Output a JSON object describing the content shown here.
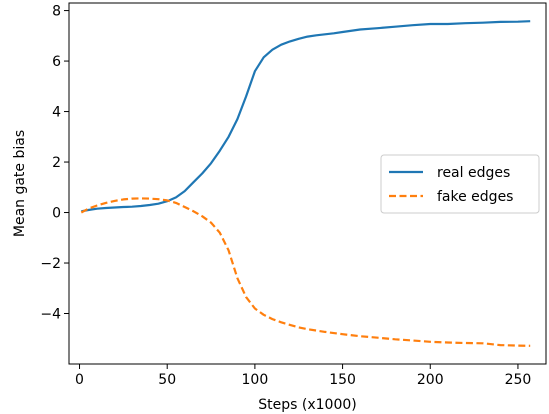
{
  "chart_data": {
    "type": "line",
    "xlabel": "Steps (x1000)",
    "ylabel": "Mean gate bias",
    "xlim": [
      -6,
      266
    ],
    "ylim": [
      -6.0,
      8.3
    ],
    "xticks": [
      0,
      50,
      100,
      150,
      200,
      250
    ],
    "yticks": [
      -4,
      -2,
      0,
      2,
      4,
      6,
      8
    ],
    "ytick_labels": [
      "−4",
      "−2",
      "0",
      "2",
      "4",
      "6",
      "8"
    ],
    "grid": false,
    "legend": "center-right",
    "series": [
      {
        "name": "real edges",
        "color": "#1f77b4",
        "dash": "solid",
        "x": [
          1,
          5,
          10,
          15,
          20,
          25,
          30,
          35,
          40,
          45,
          50,
          55,
          60,
          65,
          70,
          75,
          80,
          85,
          90,
          95,
          100,
          105,
          110,
          115,
          120,
          125,
          130,
          135,
          140,
          145,
          150,
          160,
          170,
          180,
          190,
          200,
          210,
          220,
          230,
          240,
          250,
          257
        ],
        "y": [
          0.05,
          0.1,
          0.15,
          0.18,
          0.2,
          0.22,
          0.23,
          0.26,
          0.3,
          0.35,
          0.45,
          0.6,
          0.85,
          1.2,
          1.55,
          1.95,
          2.45,
          3.0,
          3.7,
          4.6,
          5.6,
          6.15,
          6.45,
          6.65,
          6.78,
          6.88,
          6.97,
          7.02,
          7.06,
          7.1,
          7.15,
          7.25,
          7.3,
          7.36,
          7.42,
          7.47,
          7.47,
          7.5,
          7.52,
          7.55,
          7.56,
          7.58
        ]
      },
      {
        "name": "fake edges",
        "color": "#ff7f0e",
        "dash": "dashed",
        "x": [
          1,
          5,
          10,
          15,
          20,
          25,
          30,
          35,
          40,
          45,
          50,
          55,
          60,
          65,
          70,
          75,
          80,
          85,
          90,
          95,
          100,
          105,
          110,
          115,
          120,
          125,
          130,
          140,
          150,
          160,
          170,
          180,
          190,
          200,
          210,
          220,
          230,
          240,
          250,
          257
        ],
        "y": [
          0.0,
          0.15,
          0.28,
          0.38,
          0.46,
          0.52,
          0.55,
          0.56,
          0.55,
          0.53,
          0.48,
          0.38,
          0.22,
          0.05,
          -0.15,
          -0.4,
          -0.8,
          -1.5,
          -2.6,
          -3.35,
          -3.8,
          -4.05,
          -4.22,
          -4.35,
          -4.45,
          -4.55,
          -4.62,
          -4.73,
          -4.82,
          -4.9,
          -4.96,
          -5.02,
          -5.07,
          -5.12,
          -5.15,
          -5.17,
          -5.18,
          -5.25,
          -5.27,
          -5.28
        ]
      }
    ]
  }
}
